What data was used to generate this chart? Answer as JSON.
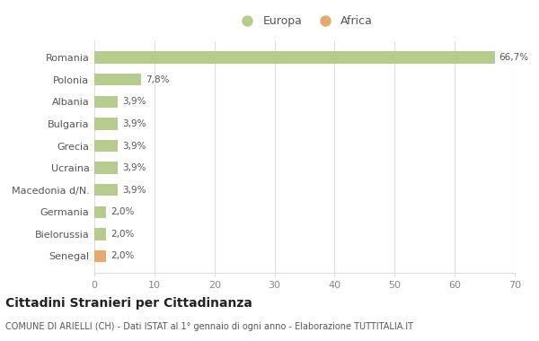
{
  "categories": [
    "Romania",
    "Polonia",
    "Albania",
    "Bulgaria",
    "Grecia",
    "Ucraina",
    "Macedonia d/N.",
    "Germania",
    "Bielorussia",
    "Senegal"
  ],
  "values": [
    66.7,
    7.8,
    3.9,
    3.9,
    3.9,
    3.9,
    3.9,
    2.0,
    2.0,
    2.0
  ],
  "labels": [
    "66,7%",
    "7,8%",
    "3,9%",
    "3,9%",
    "3,9%",
    "3,9%",
    "3,9%",
    "2,0%",
    "2,0%",
    "2,0%"
  ],
  "colors": [
    "#b5cc8e",
    "#b5cc8e",
    "#b5cc8e",
    "#b5cc8e",
    "#b5cc8e",
    "#b5cc8e",
    "#b5cc8e",
    "#b5cc8e",
    "#b5cc8e",
    "#e8a96e"
  ],
  "continent": [
    "Europa",
    "Europa",
    "Europa",
    "Europa",
    "Europa",
    "Europa",
    "Europa",
    "Europa",
    "Europa",
    "Africa"
  ],
  "europa_color": "#b5cc8e",
  "africa_color": "#e8a96e",
  "xlim": [
    0,
    70
  ],
  "xticks": [
    0,
    10,
    20,
    30,
    40,
    50,
    60,
    70
  ],
  "title": "Cittadini Stranieri per Cittadinanza",
  "subtitle": "COMUNE DI ARIELLI (CH) - Dati ISTAT al 1° gennaio di ogni anno - Elaborazione TUTTITALIA.IT",
  "background_color": "#ffffff",
  "grid_color": "#dddddd",
  "label_color": "#555555",
  "tick_color": "#888888"
}
